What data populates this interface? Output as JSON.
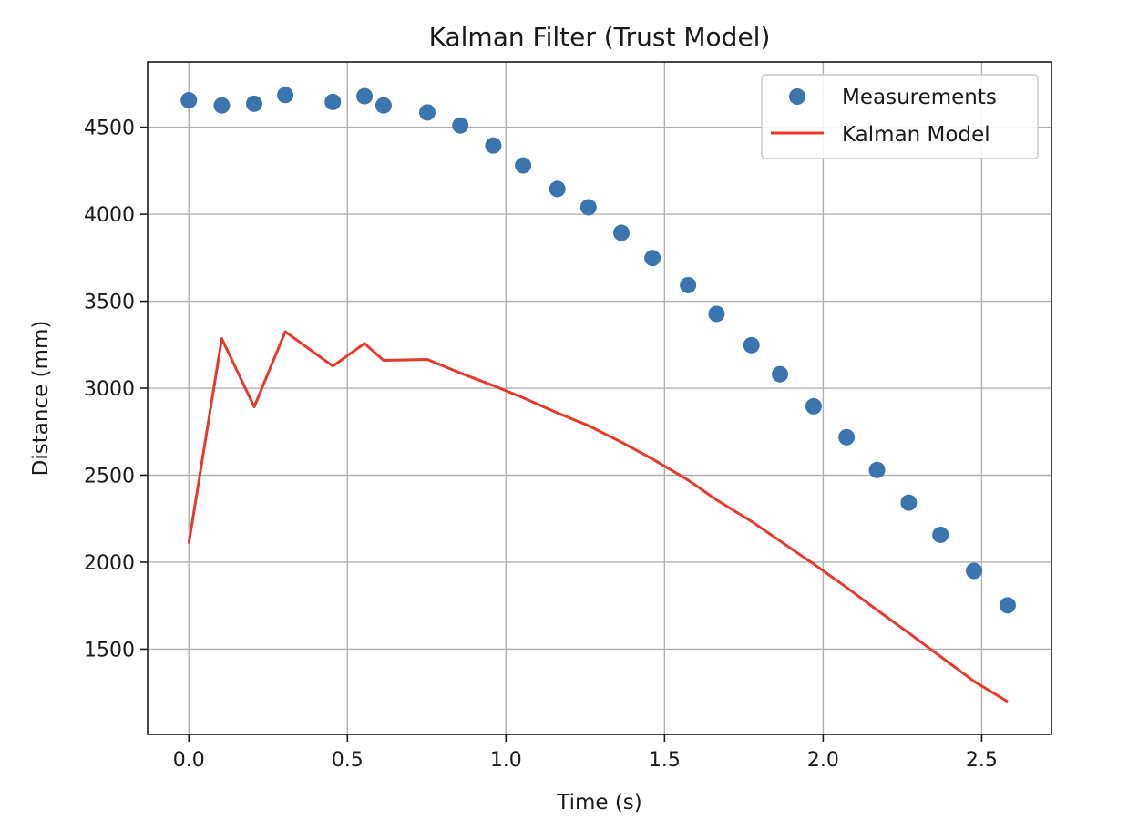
{
  "chart_data": {
    "type": "line",
    "title": "Kalman Filter (Trust Model)",
    "xlabel": "Time (s)",
    "ylabel": "Distance (mm)",
    "xlim": [
      -0.13,
      2.72
    ],
    "ylim": [
      1010,
      4875
    ],
    "xticks": [
      0.0,
      0.5,
      1.0,
      1.5,
      2.0,
      2.5
    ],
    "xtick_labels": [
      "0.0",
      "0.5",
      "1.0",
      "1.5",
      "2.0",
      "2.5"
    ],
    "yticks": [
      1500,
      2000,
      2500,
      3000,
      3500,
      4000,
      4500
    ],
    "ytick_labels": [
      "1500",
      "2000",
      "2500",
      "3000",
      "3500",
      "4000",
      "4500"
    ],
    "grid": true,
    "legend_position": "top-right",
    "series": [
      {
        "name": "Measurements",
        "kind": "scatter",
        "color": "#3a75b0",
        "x": [
          0.0,
          0.104,
          0.206,
          0.304,
          0.454,
          0.554,
          0.614,
          0.752,
          0.856,
          0.96,
          1.054,
          1.162,
          1.26,
          1.364,
          1.462,
          1.574,
          1.664,
          1.774,
          1.864,
          1.97,
          2.074,
          2.17,
          2.27,
          2.37,
          2.476,
          2.582
        ],
        "y": [
          4655,
          4625,
          4635,
          4685,
          4645,
          4678,
          4625,
          4585,
          4510,
          4395,
          4280,
          4145,
          4040,
          3893,
          3748,
          3592,
          3427,
          3247,
          3080,
          2896,
          2718,
          2530,
          2342,
          2157,
          1950,
          1752
        ]
      },
      {
        "name": "Kalman Model",
        "kind": "line",
        "color": "#e8392d",
        "x": [
          0.0,
          0.104,
          0.206,
          0.304,
          0.454,
          0.554,
          0.614,
          0.752,
          0.856,
          0.96,
          1.054,
          1.162,
          1.26,
          1.364,
          1.462,
          1.574,
          1.664,
          1.774,
          1.864,
          1.97,
          2.074,
          2.17,
          2.27,
          2.37,
          2.476,
          2.582
        ],
        "y": [
          2107,
          3285,
          2893,
          3325,
          3127,
          3257,
          3160,
          3165,
          3087,
          3015,
          2945,
          2858,
          2785,
          2690,
          2593,
          2472,
          2358,
          2235,
          2122,
          1990,
          1855,
          1725,
          1593,
          1458,
          1315,
          1198
        ]
      }
    ]
  }
}
